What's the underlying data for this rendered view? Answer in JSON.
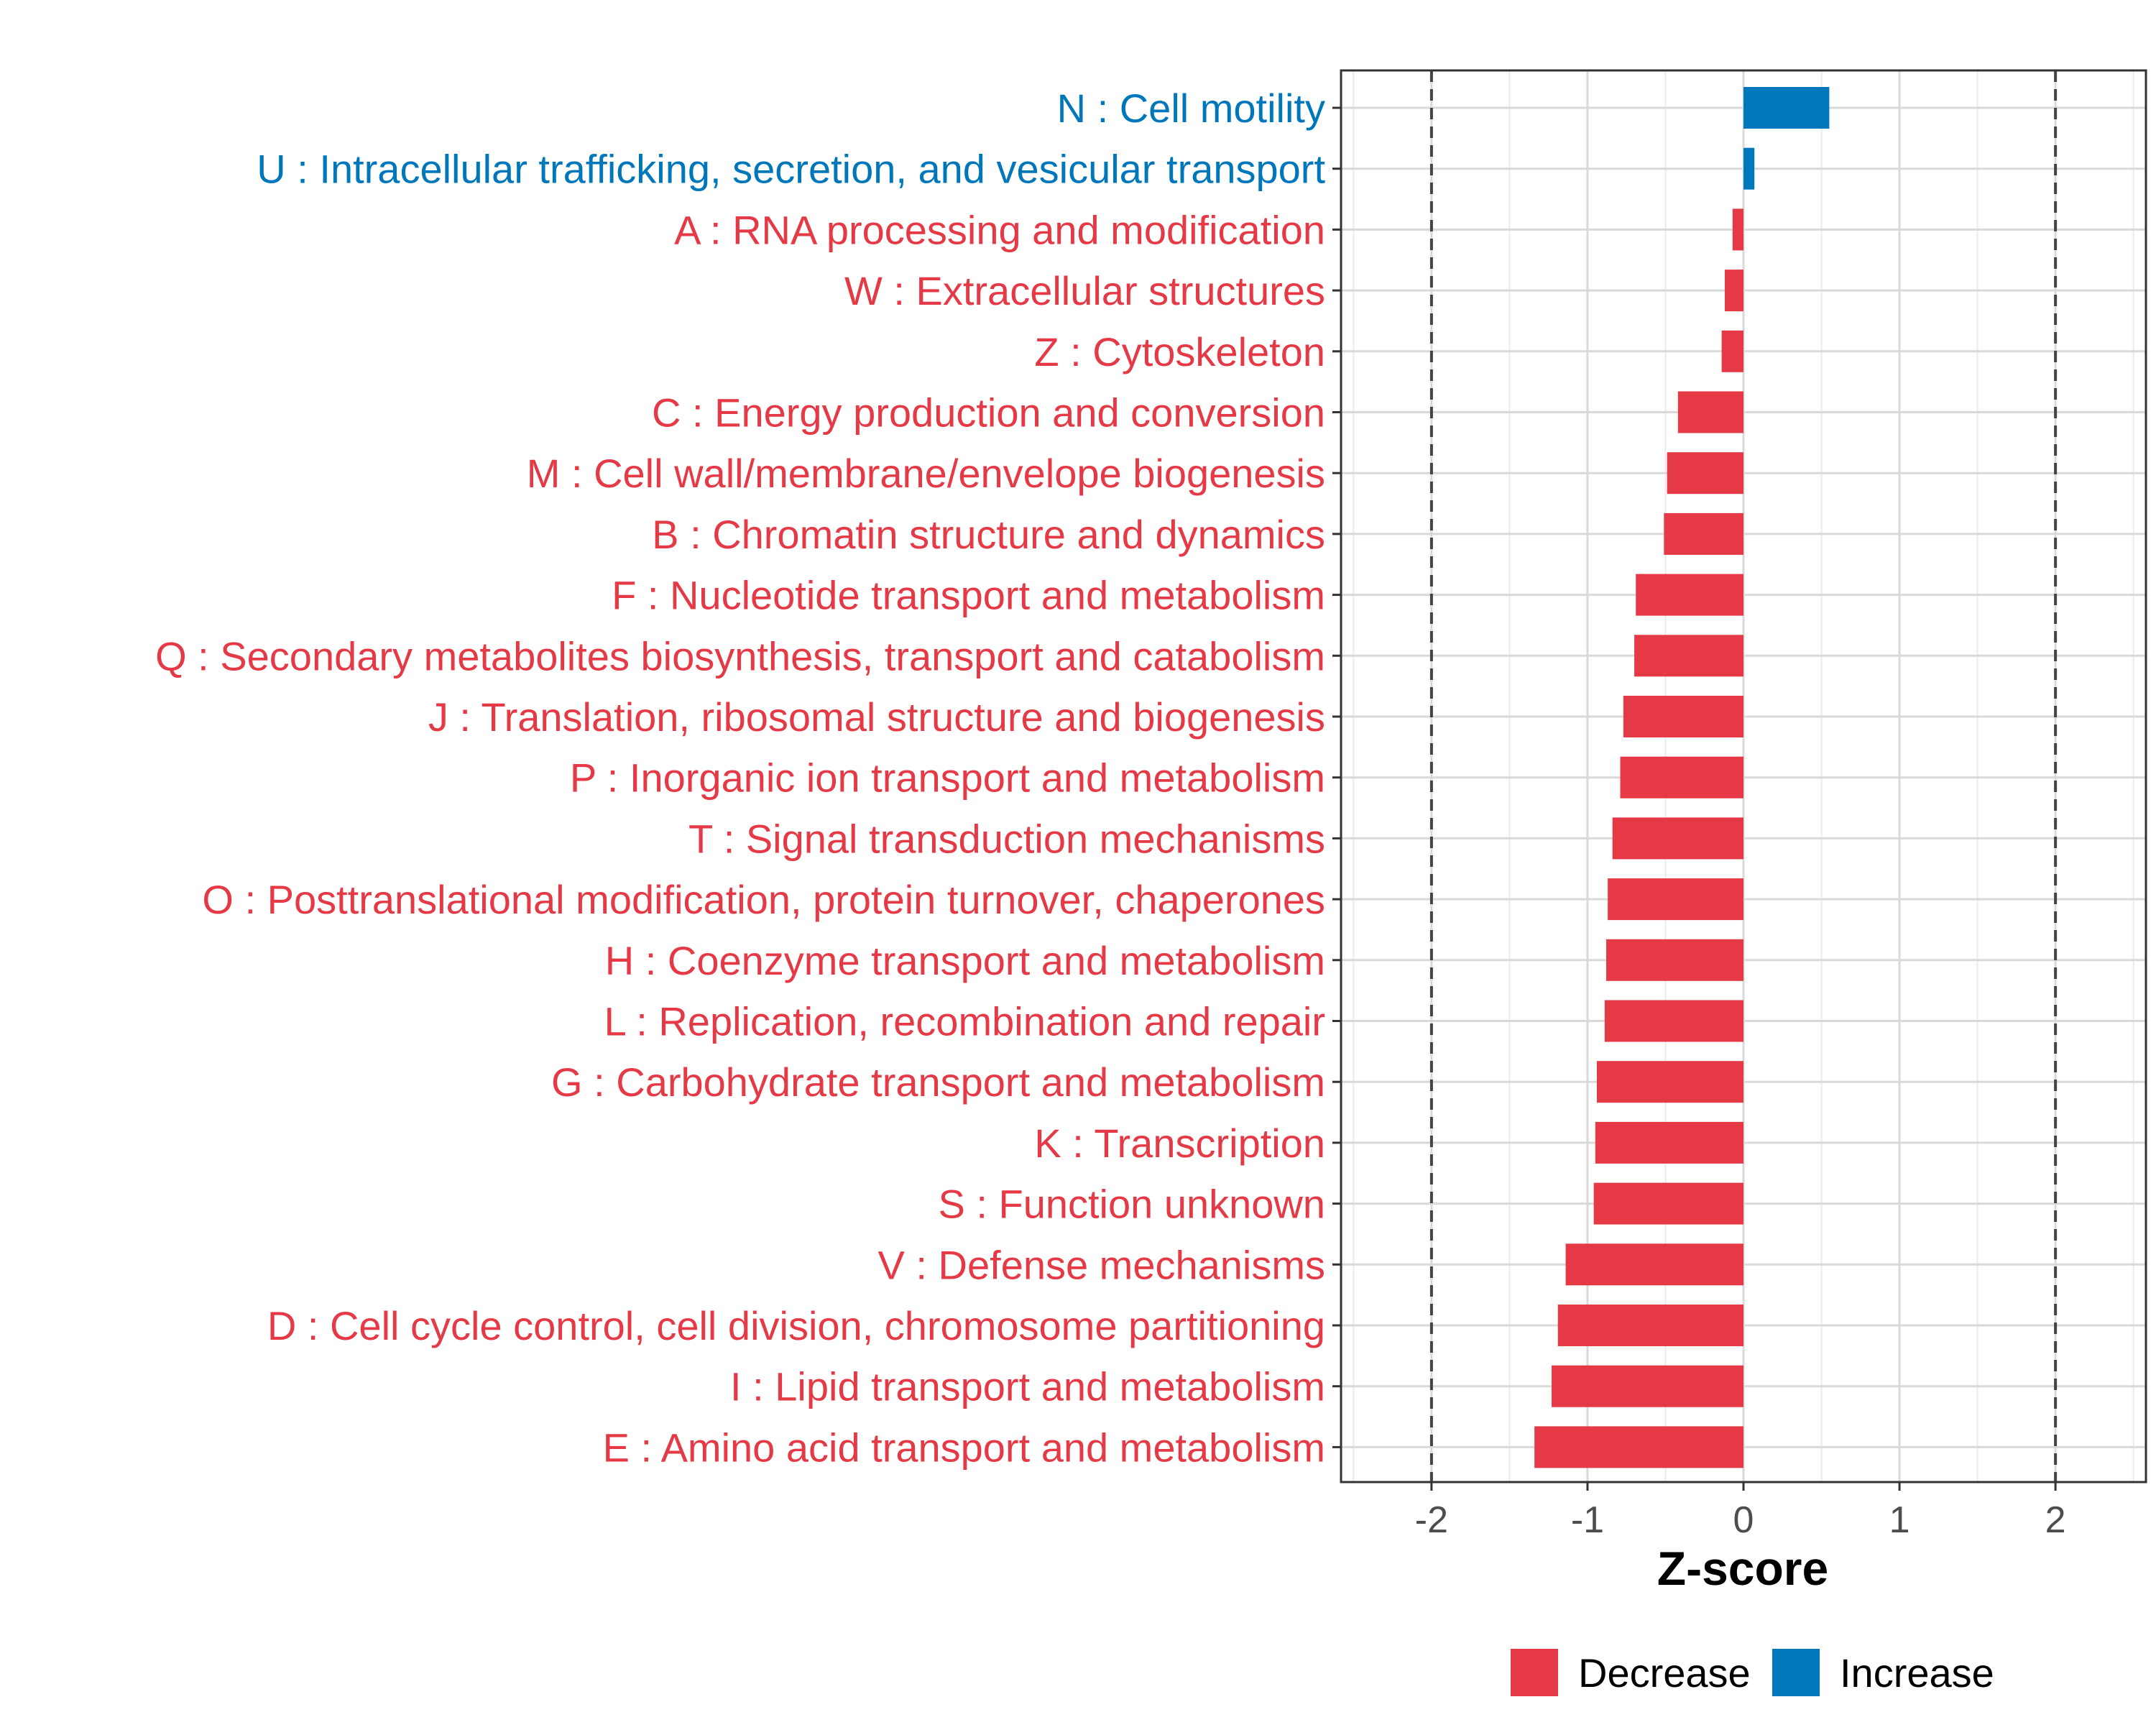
{
  "chart_data": {
    "type": "bar",
    "orientation": "horizontal",
    "xlabel": "Z-score",
    "xlim": [
      -2.58,
      2.58
    ],
    "xticks": [
      -2,
      -1,
      0,
      1,
      2
    ],
    "xtick_labels": [
      "-2",
      "-1",
      "0",
      "1",
      "2"
    ],
    "reference_lines": [
      -2,
      2
    ],
    "grid": true,
    "legend_position": "bottom",
    "colors": {
      "Decrease": "#E63946",
      "Increase": "#0077BB"
    },
    "legend": [
      {
        "label": "Decrease",
        "color": "#E63946"
      },
      {
        "label": "Increase",
        "color": "#0077BB"
      }
    ],
    "categories": [
      "N : Cell motility",
      "U : Intracellular trafficking, secretion, and vesicular transport",
      "A : RNA processing and modification",
      "W : Extracellular structures",
      "Z : Cytoskeleton",
      "C : Energy production and conversion",
      "M : Cell wall/membrane/envelope biogenesis",
      "B : Chromatin structure and dynamics",
      "F : Nucleotide transport and metabolism",
      "Q : Secondary metabolites biosynthesis, transport and catabolism",
      "J : Translation, ribosomal structure and biogenesis",
      "P : Inorganic ion transport and metabolism",
      "T : Signal transduction mechanisms",
      "O : Posttranslational modification, protein turnover, chaperones",
      "H : Coenzyme transport and metabolism",
      "L : Replication, recombination and repair",
      "G : Carbohydrate transport and metabolism",
      "K : Transcription",
      "S : Function unknown",
      "V : Defense mechanisms",
      "D : Cell cycle control, cell division, chromosome partitioning",
      "I : Lipid transport and metabolism",
      "E : Amino acid transport and metabolism"
    ],
    "values": [
      0.55,
      0.07,
      -0.07,
      -0.12,
      -0.14,
      -0.42,
      -0.49,
      -0.51,
      -0.69,
      -0.7,
      -0.77,
      -0.79,
      -0.84,
      -0.87,
      -0.88,
      -0.89,
      -0.94,
      -0.95,
      -0.96,
      -1.14,
      -1.19,
      -1.23,
      -1.34
    ],
    "groups": [
      "Increase",
      "Increase",
      "Decrease",
      "Decrease",
      "Decrease",
      "Decrease",
      "Decrease",
      "Decrease",
      "Decrease",
      "Decrease",
      "Decrease",
      "Decrease",
      "Decrease",
      "Decrease",
      "Decrease",
      "Decrease",
      "Decrease",
      "Decrease",
      "Decrease",
      "Decrease",
      "Decrease",
      "Decrease",
      "Decrease"
    ]
  }
}
